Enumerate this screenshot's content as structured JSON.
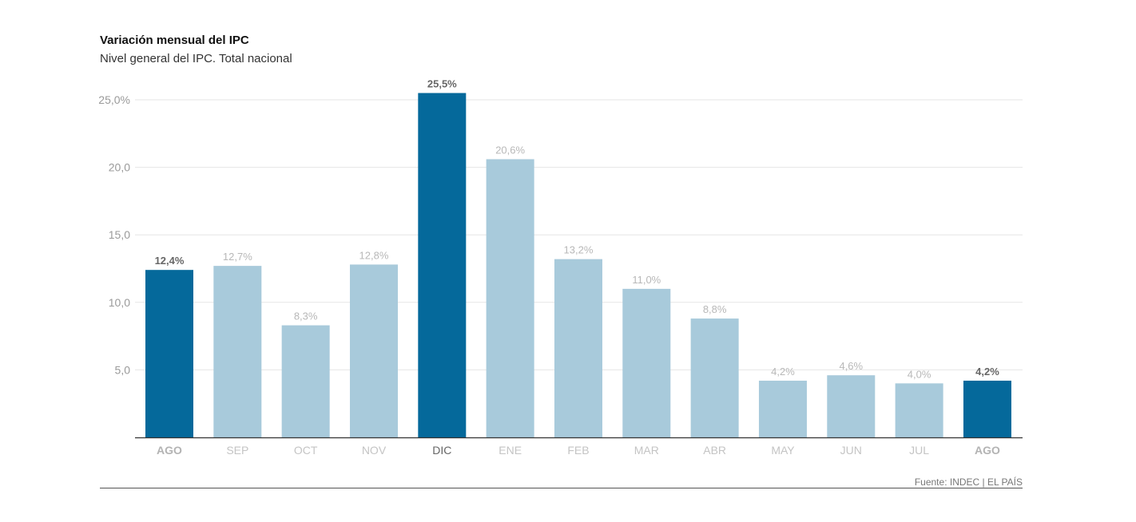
{
  "header": {
    "title": "Variación mensual del IPC",
    "subtitle": "Nivel general del IPC. Total nacional"
  },
  "footer": {
    "source": "Fuente: INDEC | EL PAÍS"
  },
  "colors": {
    "highlight": "#05699b",
    "normal": "#a8cadb",
    "axis": "#333333",
    "grid": "#e6e6e6",
    "tick_text": "#9a9a9a",
    "highlight_label": "#666666",
    "normal_label": "#b8b8b8",
    "highlight_category": "#b3b3b3",
    "dic_category": "#666666",
    "normal_category": "#c4c4c4"
  },
  "chart_data": {
    "type": "bar",
    "title": "Variación mensual del IPC",
    "subtitle": "Nivel general del IPC. Total nacional",
    "categories": [
      "AGO",
      "SEP",
      "OCT",
      "NOV",
      "DIC",
      "ENE",
      "FEB",
      "MAR",
      "ABR",
      "MAY",
      "JUN",
      "JUL",
      "AGO"
    ],
    "values": [
      12.4,
      12.7,
      8.3,
      12.8,
      25.5,
      20.6,
      13.2,
      11.0,
      8.8,
      4.2,
      4.6,
      4.0,
      4.2
    ],
    "value_labels": [
      "12,4%",
      "12,7%",
      "8,3%",
      "12,8%",
      "25,5%",
      "20,6%",
      "13,2%",
      "11,0%",
      "8,8%",
      "4,2%",
      "4,6%",
      "4,0%",
      "4,2%"
    ],
    "highlighted": [
      true,
      false,
      false,
      false,
      true,
      false,
      false,
      false,
      false,
      false,
      false,
      false,
      true
    ],
    "y_ticks": [
      5,
      10,
      15,
      20,
      25
    ],
    "y_tick_labels": [
      "5,0",
      "10,0",
      "15,0",
      "20,0",
      "25,0%"
    ],
    "ylim": [
      0,
      25
    ],
    "xlabel": "",
    "ylabel": "",
    "grid": true,
    "legend": "none"
  }
}
